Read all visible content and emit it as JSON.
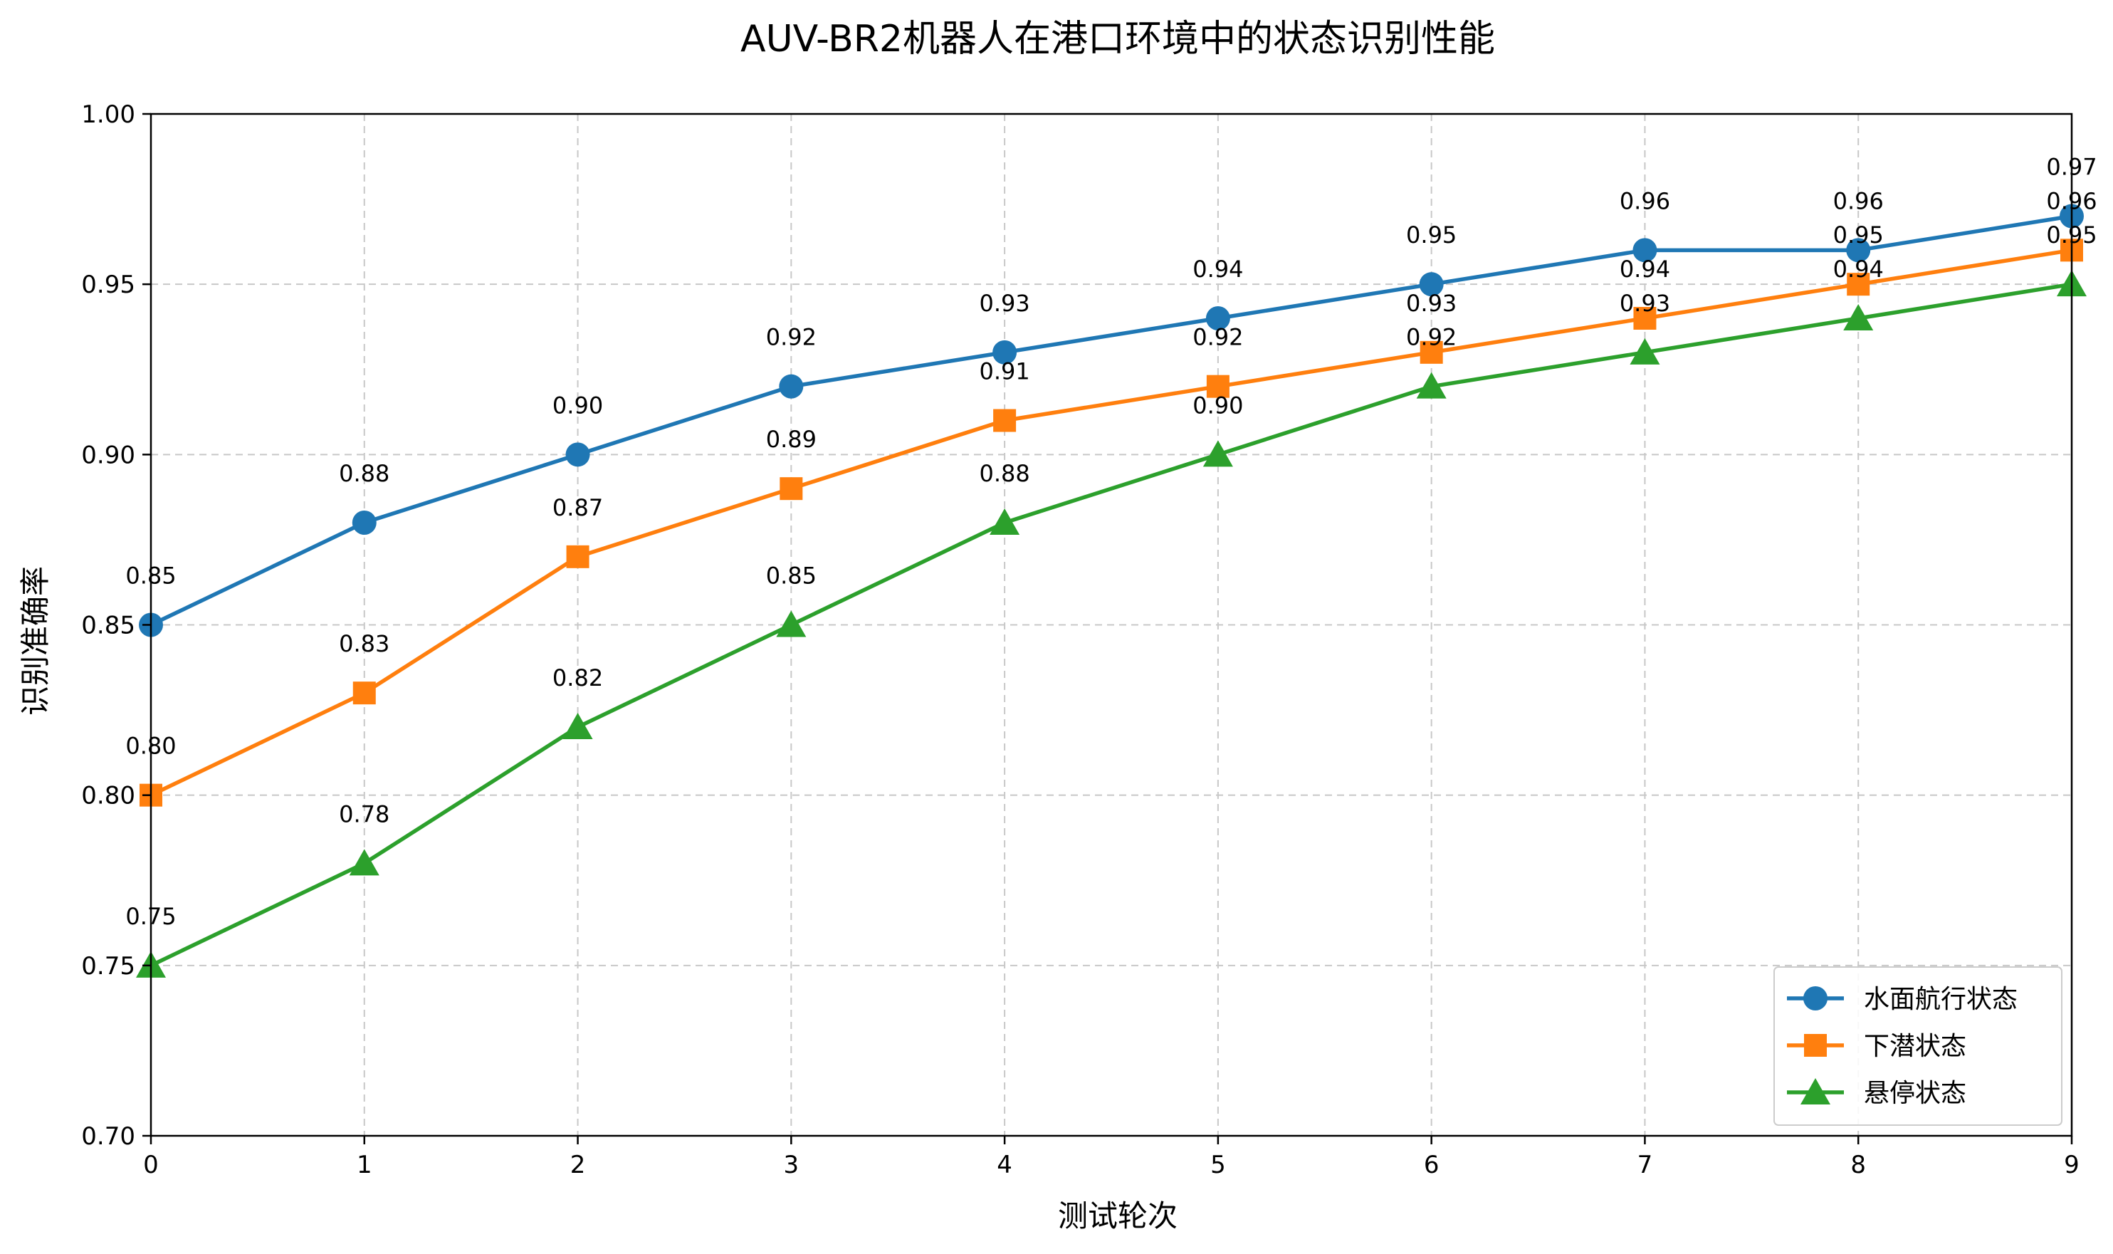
{
  "chart_data": {
    "type": "line",
    "title": "AUV-BR2机器人在港口环境中的状态识别性能",
    "xlabel": "测试轮次",
    "ylabel": "识别准确率",
    "xlim": [
      0,
      9
    ],
    "ylim": [
      0.7,
      1.0
    ],
    "x": [
      0,
      1,
      2,
      3,
      4,
      5,
      6,
      7,
      8,
      9
    ],
    "x_tick_labels": [
      "0",
      "1",
      "2",
      "3",
      "4",
      "5",
      "6",
      "7",
      "8",
      "9"
    ],
    "y_ticks": [
      0.7,
      0.75,
      0.8,
      0.85,
      0.9,
      0.95,
      1.0
    ],
    "y_tick_labels": [
      "0.70",
      "0.75",
      "0.80",
      "0.85",
      "0.90",
      "0.95",
      "1.00"
    ],
    "grid": true,
    "legend_position": "bottom-right",
    "series": [
      {
        "name": "水面航行状态",
        "color": "#1f77b4",
        "marker": "circle",
        "values": [
          0.85,
          0.88,
          0.9,
          0.92,
          0.93,
          0.94,
          0.95,
          0.96,
          0.96,
          0.97
        ],
        "labels": [
          "0.85",
          "0.88",
          "0.90",
          "0.92",
          "0.93",
          "0.94",
          "0.95",
          "0.96",
          "0.96",
          "0.97"
        ]
      },
      {
        "name": "下潜状态",
        "color": "#ff7f0e",
        "marker": "square",
        "values": [
          0.8,
          0.83,
          0.87,
          0.89,
          0.91,
          0.92,
          0.93,
          0.94,
          0.95,
          0.96
        ],
        "labels": [
          "0.80",
          "0.83",
          "0.87",
          "0.89",
          "0.91",
          "0.92",
          "0.93",
          "0.94",
          "0.95",
          "0.96"
        ]
      },
      {
        "name": "悬停状态",
        "color": "#2ca02c",
        "marker": "triangle",
        "values": [
          0.75,
          0.78,
          0.82,
          0.85,
          0.88,
          0.9,
          0.92,
          0.93,
          0.94,
          0.95
        ],
        "labels": [
          "0.75",
          "0.78",
          "0.82",
          "0.85",
          "0.88",
          "0.90",
          "0.92",
          "0.93",
          "0.94",
          "0.95"
        ]
      }
    ]
  }
}
